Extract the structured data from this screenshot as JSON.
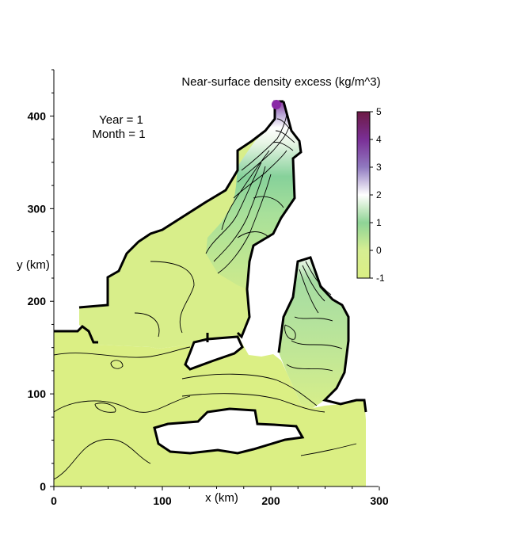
{
  "chart_data": {
    "type": "heatmap",
    "title": "Near-surface density excess (kg/m^3)",
    "xlabel": "x (km)",
    "ylabel": "y (km)",
    "xlim": [
      0,
      300
    ],
    "ylim": [
      0,
      450
    ],
    "x_ticks": [
      "0",
      "100",
      "200",
      "300"
    ],
    "y_ticks": [
      "0",
      "100",
      "200",
      "300",
      "400"
    ],
    "annotation": {
      "year_line": "Year = 1",
      "month_line": "Month = 1"
    },
    "colorbar": {
      "min": -1,
      "max": 5,
      "ticks": [
        "5",
        "4",
        "3",
        "2",
        "1",
        "0",
        "-1"
      ],
      "stops": [
        {
          "value": -1,
          "color": "#dbef84"
        },
        {
          "value": 0,
          "color": "#d6ee92"
        },
        {
          "value": 1,
          "color": "#8ed496"
        },
        {
          "value": 1.5,
          "color": "#c8eac6"
        },
        {
          "value": 2,
          "color": "#ffffff"
        },
        {
          "value": 3,
          "color": "#9079c0"
        },
        {
          "value": 4,
          "color": "#7a2f96"
        },
        {
          "value": 5,
          "color": "#6d1a45"
        }
      ]
    },
    "regions": {
      "land": "white",
      "coastline": "#000000",
      "southern_sea_value": -1,
      "northern_arm_values": [
        0,
        1,
        2,
        3,
        4,
        5
      ],
      "eastern_arm_values": [
        -1,
        0,
        1,
        2
      ]
    }
  }
}
